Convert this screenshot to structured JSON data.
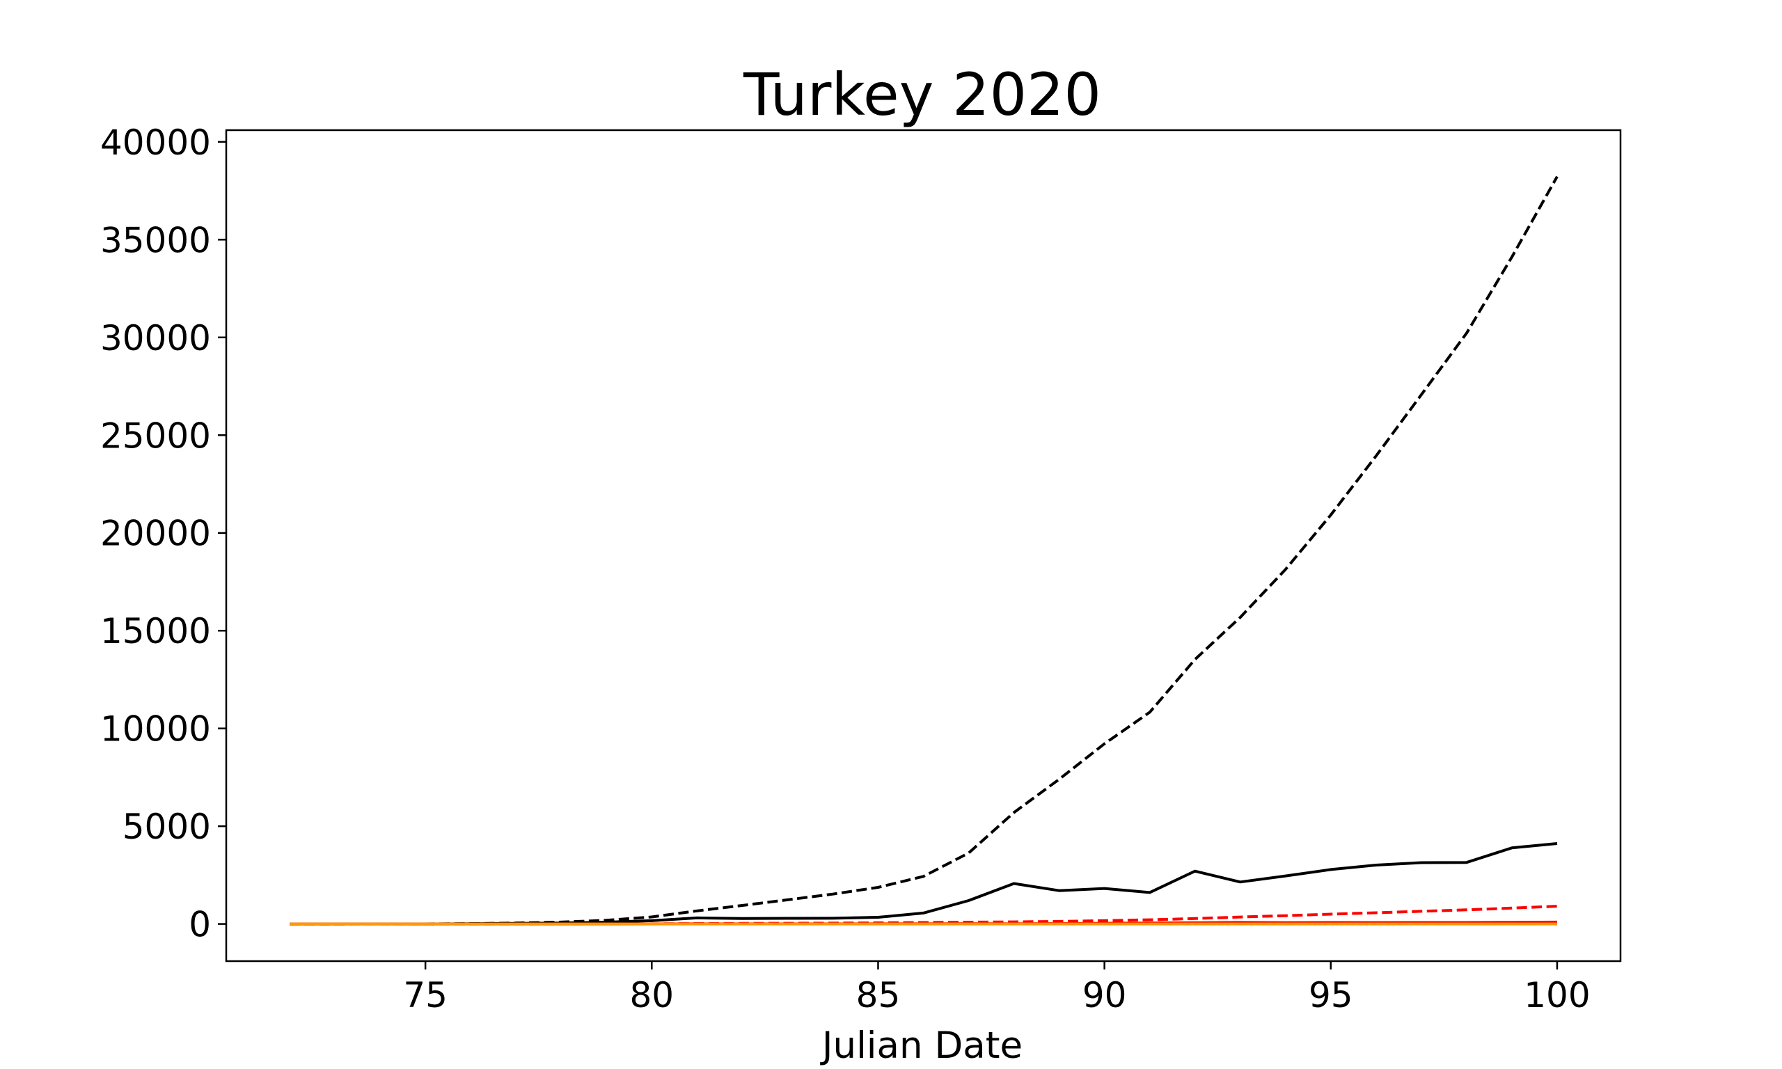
{
  "chart_data": {
    "type": "line",
    "title": "Turkey 2020",
    "xlabel": "Julian Date",
    "ylabel": "",
    "xlim": [
      70.6,
      101.4
    ],
    "ylim": [
      -1900,
      40600
    ],
    "xticks": [
      75,
      80,
      85,
      90,
      95,
      100
    ],
    "yticks": [
      0,
      5000,
      10000,
      15000,
      20000,
      25000,
      30000,
      35000,
      40000
    ],
    "grid": false,
    "legend": "none",
    "series": [
      {
        "color": "#000000",
        "dash": "dashed",
        "x": [
          72,
          73,
          74,
          75,
          76,
          77,
          78,
          79,
          80,
          81,
          82,
          83,
          84,
          85,
          86,
          87,
          88,
          89,
          90,
          91,
          92,
          93,
          94,
          95,
          96,
          97,
          98,
          99,
          100
        ],
        "values": [
          1,
          1,
          5,
          6,
          18,
          47,
          98,
          191,
          359,
          670,
          947,
          1236,
          1529,
          1872,
          2433,
          3629,
          5698,
          7402,
          9217,
          10827,
          13531,
          15679,
          18135,
          20921,
          23934,
          27069,
          30217,
          34109,
          38226
        ]
      },
      {
        "color": "#000000",
        "dash": "solid",
        "x": [
          72,
          73,
          74,
          75,
          76,
          77,
          78,
          79,
          80,
          81,
          82,
          83,
          84,
          85,
          86,
          87,
          88,
          89,
          90,
          91,
          92,
          93,
          94,
          95,
          96,
          97,
          98,
          99,
          100
        ],
        "values": [
          1,
          1,
          4,
          1,
          12,
          29,
          51,
          93,
          168,
          311,
          277,
          289,
          293,
          343,
          561,
          1196,
          2069,
          1704,
          1815,
          1610,
          2704,
          2148,
          2456,
          2786,
          3013,
          3135,
          3148,
          3892,
          4117
        ]
      },
      {
        "color": "#ff0000",
        "dash": "dashed",
        "x": [
          72,
          73,
          74,
          75,
          76,
          77,
          78,
          79,
          80,
          81,
          82,
          83,
          84,
          85,
          86,
          87,
          88,
          89,
          90,
          91,
          92,
          93,
          94,
          95,
          96,
          97,
          98,
          99,
          100
        ],
        "values": [
          0,
          0,
          0,
          0,
          0,
          1,
          2,
          4,
          9,
          21,
          30,
          37,
          44,
          59,
          75,
          92,
          108,
          131,
          168,
          214,
          277,
          356,
          425,
          501,
          574,
          649,
          725,
          812,
          908
        ]
      },
      {
        "color": "#ff0000",
        "dash": "solid",
        "x": [
          72,
          73,
          74,
          75,
          76,
          77,
          78,
          79,
          80,
          81,
          82,
          83,
          84,
          85,
          86,
          87,
          88,
          89,
          90,
          91,
          92,
          93,
          94,
          95,
          96,
          97,
          98,
          99,
          100
        ],
        "values": [
          0,
          0,
          0,
          0,
          0,
          1,
          1,
          2,
          5,
          12,
          9,
          7,
          7,
          15,
          16,
          17,
          16,
          23,
          37,
          46,
          63,
          79,
          69,
          76,
          73,
          75,
          76,
          87,
          96
        ]
      },
      {
        "color": "#ff9900",
        "dash": "solid",
        "x": [
          72,
          73,
          74,
          75,
          76,
          77,
          78,
          79,
          80,
          81,
          82,
          83,
          84,
          85,
          86,
          87,
          88,
          89,
          90,
          91,
          92,
          93,
          94,
          95,
          96,
          97,
          98,
          99,
          100
        ],
        "values": [
          0,
          0,
          0,
          0,
          0,
          0,
          0,
          0,
          0,
          0,
          0,
          0,
          0,
          0,
          0,
          0,
          0,
          0,
          0,
          0,
          0,
          0,
          0,
          0,
          0,
          0,
          0,
          0,
          0
        ]
      }
    ]
  }
}
